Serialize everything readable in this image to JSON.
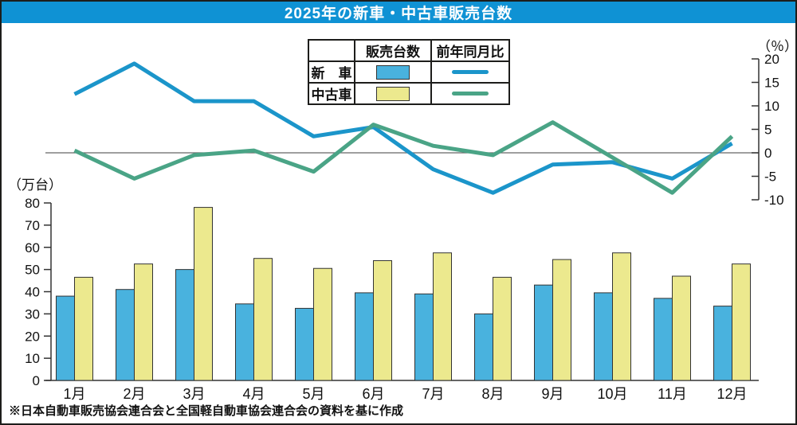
{
  "title": "2025年の新車・中古車販売台数",
  "footnote": "※日本自動車販売協会連合会と全国軽自動車協会連合会の資料を基に作成",
  "legend": {
    "col_sales": "販売台数",
    "col_yoy": "前年同月比",
    "row_new": "新　車",
    "row_used": "中古車"
  },
  "colors": {
    "title_bg": "#0f92d4",
    "title_text": "#ffffff",
    "bar_new": "#49b2de",
    "bar_used": "#ece98e",
    "bar_stroke": "#333333",
    "line_new": "#1b95ca",
    "line_used": "#4aa486",
    "axis": "#333333",
    "zero_line": "#666666"
  },
  "chart_data": {
    "type": "bar+line",
    "categories": [
      "1月",
      "2月",
      "3月",
      "4月",
      "5月",
      "6月",
      "7月",
      "8月",
      "9月",
      "10月",
      "11月",
      "12月"
    ],
    "bar_series": [
      {
        "name": "新車",
        "unit": "万台",
        "values": [
          38,
          41,
          50,
          34.5,
          32.5,
          39.5,
          39,
          30,
          43,
          39.5,
          37,
          33.5
        ]
      },
      {
        "name": "中古車",
        "unit": "万台",
        "values": [
          46.5,
          52.5,
          78,
          55,
          50.5,
          54,
          57.5,
          46.5,
          54.5,
          57.5,
          47,
          52.5
        ]
      }
    ],
    "line_series": [
      {
        "name": "新車 前年同月比",
        "unit": "%",
        "values": [
          12.5,
          19,
          11,
          11,
          3.5,
          5.5,
          -3.5,
          -8.5,
          -2.5,
          -2,
          -5.5,
          2
        ]
      },
      {
        "name": "中古車 前年同月比",
        "unit": "%",
        "values": [
          0.5,
          -5.5,
          -0.5,
          0.5,
          -4,
          6,
          1.5,
          -0.5,
          6.5,
          -1,
          -8.5,
          3.5
        ]
      }
    ],
    "left_axis": {
      "label": "（万台）",
      "min": 0,
      "max": 80,
      "step": 10,
      "ticks": [
        0,
        10,
        20,
        30,
        40,
        50,
        60,
        70,
        80
      ]
    },
    "right_axis": {
      "label": "（％）",
      "min": -10,
      "max": 20,
      "step": 5,
      "ticks": [
        -10,
        -5,
        0,
        5,
        10,
        15,
        20
      ]
    },
    "grid": false,
    "legend_position": "top-center"
  }
}
